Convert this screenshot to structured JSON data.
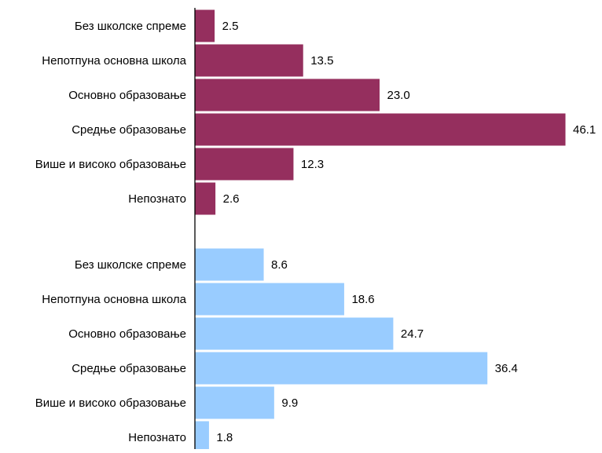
{
  "colors": {
    "group_1": "#952F5E",
    "group_2": "#99CCFF",
    "axis": "#000000",
    "text": "#000000",
    "bar_edge": "#ffffff"
  },
  "chart_data": [
    {
      "type": "bar",
      "orientation": "horizontal",
      "categories": [
        "Без школске спреме",
        "Непотпуна основна школа",
        "Основно образовање",
        "Средње образовање",
        "Више и високо образовање",
        "Непознато"
      ],
      "values": [
        2.5,
        13.5,
        23.0,
        46.1,
        12.3,
        2.6
      ],
      "value_labels": [
        "2.5",
        "13.5",
        "23.0",
        "46.1",
        "12.3",
        "2.6"
      ],
      "color": "#952F5E",
      "xlim": [
        0,
        46.1
      ],
      "grid": false,
      "title": "",
      "xlabel": "",
      "ylabel": ""
    },
    {
      "type": "bar",
      "orientation": "horizontal",
      "categories": [
        "Без школске спреме",
        "Непотпуна основна школа",
        "Основно образовање",
        "Средње образовање",
        "Више и високо образовање",
        "Непознато"
      ],
      "values": [
        8.6,
        18.6,
        24.7,
        36.4,
        9.9,
        1.8
      ],
      "value_labels": [
        "8.6",
        "18.6",
        "24.7",
        "36.4",
        "9.9",
        "1.8"
      ],
      "color": "#99CCFF",
      "xlim": [
        0,
        46.1
      ],
      "grid": false,
      "title": "",
      "xlabel": "",
      "ylabel": ""
    }
  ]
}
